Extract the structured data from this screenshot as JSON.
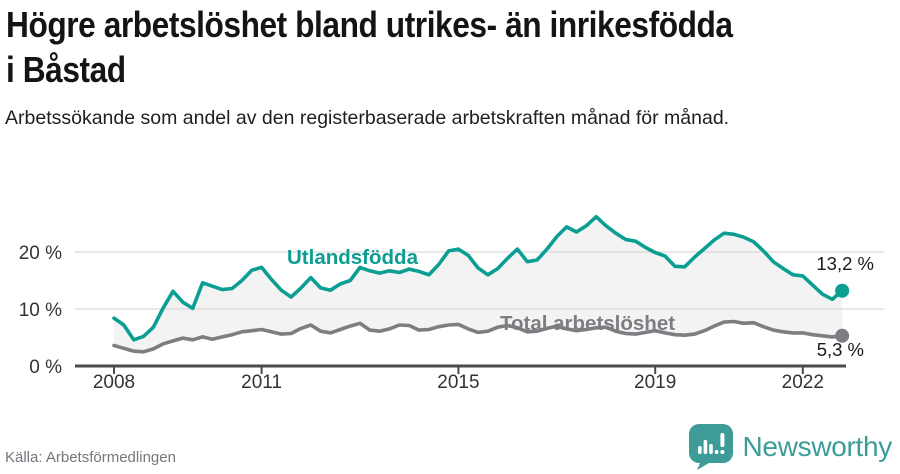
{
  "header": {
    "title": "Högre arbetslöshet bland utrikes- än inrikesfödda i Båstad",
    "subtitle": "Arbetssökande som andel av den registerbaserade arbetskraften månad för månad."
  },
  "chart_data": {
    "type": "line",
    "title": "Högre arbetslöshet bland utrikes- än inrikesfödda i Båstad",
    "x_start": 2008,
    "x_step": 0.2,
    "x_end": 2022.8,
    "ylim": [
      0,
      30
    ],
    "grid": true,
    "legend_position": "inline-labels",
    "xticks": [
      {
        "value": 2008,
        "label": "2008"
      },
      {
        "value": 2011,
        "label": "2011"
      },
      {
        "value": 2015,
        "label": "2015"
      },
      {
        "value": 2019,
        "label": "2019"
      },
      {
        "value": 2022,
        "label": "2022"
      }
    ],
    "yticks": [
      {
        "value": 0,
        "label": "0 %"
      },
      {
        "value": 10,
        "label": "10 %"
      },
      {
        "value": 20,
        "label": "20 %"
      }
    ],
    "series": [
      {
        "name": "Utlandsfödda",
        "color": "#0b9e92",
        "end_label": "13,2 %",
        "values": [
          8.4,
          7.2,
          4.6,
          5.2,
          6.8,
          10.2,
          13.1,
          11.2,
          10.1,
          14.6,
          14.0,
          13.4,
          13.6,
          15.0,
          16.8,
          17.3,
          15.2,
          13.3,
          12.1,
          13.7,
          15.5,
          13.7,
          13.3,
          14.4,
          15.0,
          17.3,
          16.7,
          16.3,
          16.7,
          16.4,
          17.0,
          16.6,
          16.0,
          17.8,
          20.2,
          20.5,
          19.4,
          17.2,
          16.0,
          17.1,
          18.9,
          20.5,
          18.3,
          18.6,
          20.5,
          22.7,
          24.4,
          23.5,
          24.6,
          26.2,
          24.6,
          23.3,
          22.2,
          21.9,
          20.8,
          19.9,
          19.3,
          17.5,
          17.4,
          19.1,
          20.6,
          22.1,
          23.3,
          23.1,
          22.6,
          21.8,
          20.2,
          18.3,
          17.1,
          16.0,
          15.8,
          14.2,
          12.6,
          11.7,
          13.2
        ]
      },
      {
        "name": "Total arbetslöshet",
        "color": "#7d7e82",
        "end_label": "5,3 %",
        "values": [
          3.6,
          3.1,
          2.6,
          2.5,
          3.0,
          3.9,
          4.4,
          4.9,
          4.6,
          5.1,
          4.7,
          5.1,
          5.5,
          6.0,
          6.2,
          6.4,
          6.0,
          5.6,
          5.7,
          6.6,
          7.2,
          6.1,
          5.8,
          6.4,
          7.0,
          7.5,
          6.3,
          6.1,
          6.5,
          7.2,
          7.1,
          6.3,
          6.4,
          6.9,
          7.2,
          7.3,
          6.5,
          5.9,
          6.1,
          6.8,
          7.1,
          6.7,
          6.0,
          6.1,
          6.6,
          7.0,
          6.5,
          6.2,
          6.4,
          6.7,
          6.8,
          6.1,
          5.7,
          5.6,
          5.9,
          6.2,
          5.8,
          5.5,
          5.4,
          5.6,
          6.2,
          7.0,
          7.7,
          7.8,
          7.5,
          7.6,
          6.9,
          6.3,
          6.0,
          5.8,
          5.8,
          5.5,
          5.3,
          5.1,
          5.3
        ]
      }
    ],
    "colors": {
      "band_fill": "#f3f3f4",
      "grid": "#d9d9d9",
      "axis": "#4a4a4b",
      "tick_text": "#333333",
      "value_label_text": "#1a1a1a"
    }
  },
  "footer": {
    "source": "Källa: Arbetsförmedlingen",
    "brand": "Newsworthy",
    "brand_color": "#3d9c98"
  }
}
